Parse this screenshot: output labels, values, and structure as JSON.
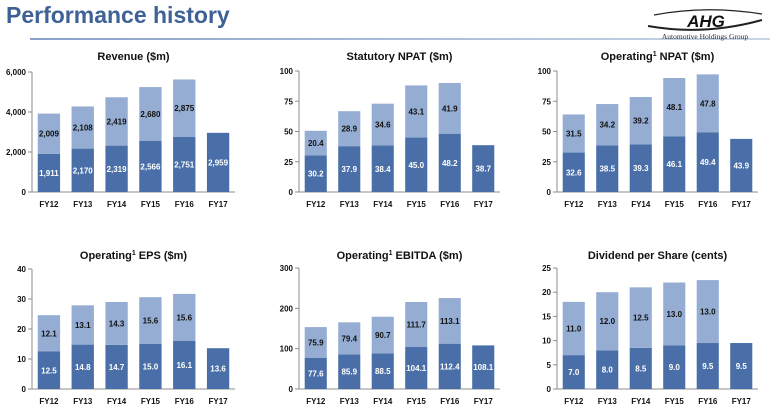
{
  "header": {
    "title": "Performance history"
  },
  "logo": {
    "mark": "AHG",
    "name": "Automotive Holdings Group"
  },
  "colors": {
    "title": "#3e6196",
    "bottom": "#4a6fa8",
    "top": "#95add3",
    "axis": "#8c8c8c"
  },
  "chart_data": [
    {
      "type": "bar",
      "stacked": true,
      "title": "Revenue ($m)",
      "categories": [
        "FY12",
        "FY13",
        "FY14",
        "FY15",
        "FY16",
        "FY17"
      ],
      "ylim": [
        0,
        6000
      ],
      "yticks": [
        0,
        2000,
        4000,
        6000
      ],
      "ytick_labels": [
        "0",
        "2,000",
        "4,000",
        "6,000"
      ],
      "series": [
        {
          "values": [
            1911,
            2170,
            2319,
            2566,
            2751,
            2959
          ],
          "labels": [
            "1,911",
            "2,170",
            "2,319",
            "2,566",
            "2,751",
            "2,959"
          ]
        },
        {
          "values": [
            2009,
            2108,
            2419,
            2680,
            2875,
            null
          ],
          "labels": [
            "2,009",
            "2,108",
            "2,419",
            "2,680",
            "2,875",
            ""
          ]
        }
      ]
    },
    {
      "type": "bar",
      "stacked": true,
      "title": "Statutory NPAT ($m)",
      "categories": [
        "FY12",
        "FY13",
        "FY14",
        "FY15",
        "FY16",
        "FY17"
      ],
      "ylim": [
        0,
        100
      ],
      "yticks": [
        0,
        25,
        50,
        75,
        100
      ],
      "ytick_labels": [
        "0",
        "25",
        "50",
        "75",
        "100"
      ],
      "series": [
        {
          "values": [
            30.2,
            37.9,
            38.4,
            45.0,
            48.2,
            38.7
          ],
          "labels": [
            "30.2",
            "37.9",
            "38.4",
            "45.0",
            "48.2",
            "38.7"
          ]
        },
        {
          "values": [
            20.4,
            28.9,
            34.6,
            43.1,
            41.9,
            null
          ],
          "labels": [
            "20.4",
            "28.9",
            "34.6",
            "43.1",
            "41.9",
            ""
          ]
        }
      ]
    },
    {
      "type": "bar",
      "stacked": true,
      "title": "Operating",
      "title_sup": "1",
      "title_rest": " NPAT ($m)",
      "categories": [
        "FY12",
        "FY13",
        "FY14",
        "FY15",
        "FY16",
        "FY17"
      ],
      "ylim": [
        0,
        100
      ],
      "yticks": [
        0,
        25,
        50,
        75,
        100
      ],
      "ytick_labels": [
        "0",
        "25",
        "50",
        "75",
        "100"
      ],
      "series": [
        {
          "values": [
            32.6,
            38.5,
            39.3,
            46.1,
            49.4,
            43.9
          ],
          "labels": [
            "32.6",
            "38.5",
            "39.3",
            "46.1",
            "49.4",
            "43.9"
          ]
        },
        {
          "values": [
            31.5,
            34.2,
            39.2,
            48.1,
            47.8,
            null
          ],
          "labels": [
            "31.5",
            "34.2",
            "39.2",
            "48.1",
            "47.8",
            ""
          ]
        }
      ]
    },
    {
      "type": "bar",
      "stacked": true,
      "title": "Operating",
      "title_sup": "1",
      "title_rest": " EPS ($m)",
      "categories": [
        "FY12",
        "FY13",
        "FY14",
        "FY15",
        "FY16",
        "FY17"
      ],
      "ylim": [
        0,
        40
      ],
      "yticks": [
        0,
        10,
        20,
        30,
        40
      ],
      "ytick_labels": [
        "0",
        "10",
        "20",
        "30",
        "40"
      ],
      "series": [
        {
          "values": [
            12.5,
            14.8,
            14.7,
            15.0,
            16.1,
            13.6
          ],
          "labels": [
            "12.5",
            "14.8",
            "14.7",
            "15.0",
            "16.1",
            "13.6"
          ]
        },
        {
          "values": [
            12.1,
            13.1,
            14.3,
            15.6,
            15.6,
            null
          ],
          "labels": [
            "12.1",
            "13.1",
            "14.3",
            "15.6",
            "15.6",
            ""
          ]
        }
      ]
    },
    {
      "type": "bar",
      "stacked": true,
      "title": "Operating",
      "title_sup": "1",
      "title_rest": " EBITDA ($m)",
      "categories": [
        "FY12",
        "FY13",
        "FY14",
        "FY15",
        "FY16",
        "FY17"
      ],
      "ylim": [
        0,
        300
      ],
      "yticks": [
        0,
        100,
        200,
        300
      ],
      "ytick_labels": [
        "0",
        "100",
        "200",
        "300"
      ],
      "series": [
        {
          "values": [
            77.6,
            85.9,
            88.5,
            104.1,
            112.4,
            108.1
          ],
          "labels": [
            "77.6",
            "85.9",
            "88.5",
            "104.1",
            "112.4",
            "108.1"
          ]
        },
        {
          "values": [
            75.9,
            79.4,
            90.7,
            111.7,
            113.1,
            null
          ],
          "labels": [
            "75.9",
            "79.4",
            "90.7",
            "111.7",
            "113.1",
            ""
          ]
        }
      ]
    },
    {
      "type": "bar",
      "stacked": true,
      "title": "Dividend per Share (cents)",
      "categories": [
        "FY12",
        "FY13",
        "FY14",
        "FY15",
        "FY16",
        "FY17"
      ],
      "ylim": [
        0,
        25
      ],
      "yticks": [
        0,
        5,
        10,
        15,
        20,
        25
      ],
      "ytick_labels": [
        "0",
        "5",
        "10",
        "15",
        "20",
        "25"
      ],
      "series": [
        {
          "values": [
            7.0,
            8.0,
            8.5,
            9.0,
            9.5,
            9.5
          ],
          "labels": [
            "7.0",
            "8.0",
            "8.5",
            "9.0",
            "9.5",
            "9.5"
          ]
        },
        {
          "values": [
            11.0,
            12.0,
            12.5,
            13.0,
            13.0,
            null
          ],
          "labels": [
            "11.0",
            "12.0",
            "12.5",
            "13.0",
            "13.0",
            ""
          ]
        }
      ]
    }
  ]
}
